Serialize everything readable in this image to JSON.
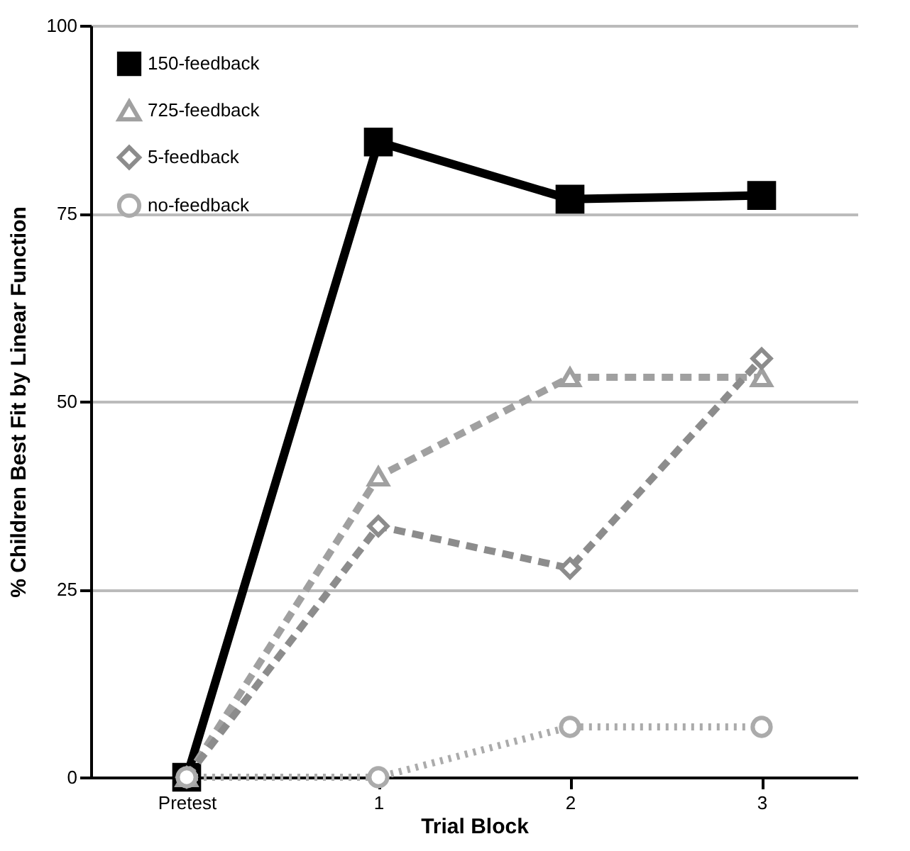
{
  "chart_data": {
    "type": "line",
    "xlabel": "Trial Block",
    "ylabel": "% Children Best Fit by Linear Function",
    "categories": [
      "Pretest",
      "1",
      "2",
      "3"
    ],
    "series": [
      {
        "name": "150-feedback",
        "color": "#000000",
        "values": [
          0,
          84.5,
          76.9,
          77.4
        ],
        "marker": "square",
        "line_style": "solid"
      },
      {
        "name": "725-feedback",
        "color": "#a0a0a0",
        "values": [
          0,
          40,
          53.2,
          53.2
        ],
        "marker": "triangle",
        "line_style": "dashed"
      },
      {
        "name": "5-feedback",
        "color": "#8c8c8c",
        "values": [
          0,
          33.4,
          27.8,
          55.7
        ],
        "marker": "diamond",
        "line_style": "dashed"
      },
      {
        "name": "no-feedback",
        "color": "#ababab",
        "values": [
          0,
          0,
          6.7,
          6.7
        ],
        "marker": "circle",
        "line_style": "dotted"
      }
    ],
    "ylim": [
      0,
      100
    ],
    "yticks": [
      0,
      25,
      50,
      75,
      100
    ],
    "grid": "y",
    "legend": "top left"
  }
}
